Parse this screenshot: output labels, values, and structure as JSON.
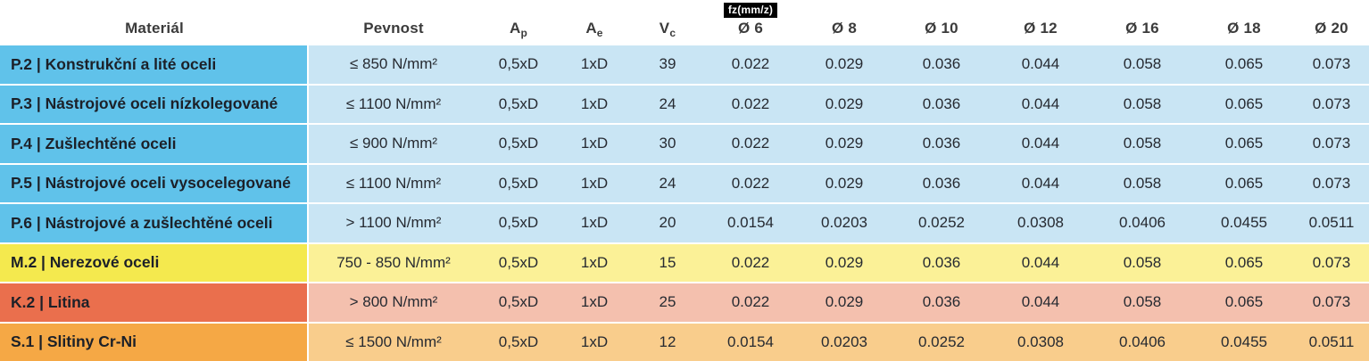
{
  "table": {
    "header": {
      "material": "Materiál",
      "pevnost": "Pevnost",
      "ap": {
        "base": "A",
        "sub": "p"
      },
      "ae": {
        "base": "A",
        "sub": "e"
      },
      "vc": {
        "base": "V",
        "sub": "c"
      },
      "fz_unit": "fz(mm/z)",
      "diameters": [
        "Ø 6",
        "Ø 8",
        "Ø 10",
        "Ø 12",
        "Ø 16",
        "Ø 18",
        "Ø 20"
      ]
    },
    "rows": [
      {
        "theme": "blue",
        "material": "P.2 | Konstrukční a lité oceli",
        "pevnost": "≤ 850 N/mm²",
        "ap": "0,5xD",
        "ae": "1xD",
        "vc": "39",
        "fz": [
          "0.022",
          "0.029",
          "0.036",
          "0.044",
          "0.058",
          "0.065",
          "0.073"
        ]
      },
      {
        "theme": "blue",
        "material": "P.3 | Nástrojové oceli nízkolegované",
        "pevnost": "≤ 1100 N/mm²",
        "ap": "0,5xD",
        "ae": "1xD",
        "vc": "24",
        "fz": [
          "0.022",
          "0.029",
          "0.036",
          "0.044",
          "0.058",
          "0.065",
          "0.073"
        ]
      },
      {
        "theme": "blue",
        "material": "P.4 | Zušlechtěné oceli",
        "pevnost": "≤ 900 N/mm²",
        "ap": "0,5xD",
        "ae": "1xD",
        "vc": "30",
        "fz": [
          "0.022",
          "0.029",
          "0.036",
          "0.044",
          "0.058",
          "0.065",
          "0.073"
        ]
      },
      {
        "theme": "blue",
        "material": "P.5 | Nástrojové oceli vysocelegované",
        "pevnost": "≤ 1100 N/mm²",
        "ap": "0,5xD",
        "ae": "1xD",
        "vc": "24",
        "fz": [
          "0.022",
          "0.029",
          "0.036",
          "0.044",
          "0.058",
          "0.065",
          "0.073"
        ]
      },
      {
        "theme": "blue",
        "material": "P.6 | Nástrojové a zušlechtěné oceli",
        "pevnost": "> 1100 N/mm²",
        "ap": "0,5xD",
        "ae": "1xD",
        "vc": "20",
        "fz": [
          "0.0154",
          "0.0203",
          "0.0252",
          "0.0308",
          "0.0406",
          "0.0455",
          "0.0511"
        ]
      },
      {
        "theme": "yellow",
        "material": "M.2 | Nerezové oceli",
        "pevnost": "750 - 850 N/mm²",
        "ap": "0,5xD",
        "ae": "1xD",
        "vc": "15",
        "fz": [
          "0.022",
          "0.029",
          "0.036",
          "0.044",
          "0.058",
          "0.065",
          "0.073"
        ]
      },
      {
        "theme": "salmon",
        "material": "K.2 | Litina",
        "pevnost": "> 800 N/mm²",
        "ap": "0,5xD",
        "ae": "1xD",
        "vc": "25",
        "fz": [
          "0.022",
          "0.029",
          "0.036",
          "0.044",
          "0.058",
          "0.065",
          "0.073"
        ]
      },
      {
        "theme": "orange",
        "material": "S.1 | Slitiny Cr-Ni",
        "pevnost": "≤ 1500 N/mm²",
        "ap": "0,5xD",
        "ae": "1xD",
        "vc": "12",
        "fz": [
          "0.0154",
          "0.0203",
          "0.0252",
          "0.0308",
          "0.0406",
          "0.0455",
          "0.0511"
        ]
      }
    ],
    "colors": {
      "blue": {
        "dark": "#60c2ea",
        "light": "#c9e5f4"
      },
      "yellow": {
        "dark": "#f4e94e",
        "light": "#fbf197"
      },
      "salmon": {
        "dark": "#ea6f4d",
        "light": "#f4c0ae"
      },
      "orange": {
        "dark": "#f5a845",
        "light": "#f9cd8c"
      }
    }
  },
  "chart_data": {
    "type": "table",
    "title": "",
    "columns": [
      "Materiál",
      "Pevnost",
      "Ap",
      "Ae",
      "Vc",
      "fz(mm/z) Ø 6",
      "Ø 8",
      "Ø 10",
      "Ø 12",
      "Ø 16",
      "Ø 18",
      "Ø 20"
    ],
    "rows": [
      [
        "P.2 | Konstrukční a lité oceli",
        "≤ 850 N/mm²",
        "0,5xD",
        "1xD",
        39,
        0.022,
        0.029,
        0.036,
        0.044,
        0.058,
        0.065,
        0.073
      ],
      [
        "P.3 | Nástrojové oceli nízkolegované",
        "≤ 1100 N/mm²",
        "0,5xD",
        "1xD",
        24,
        0.022,
        0.029,
        0.036,
        0.044,
        0.058,
        0.065,
        0.073
      ],
      [
        "P.4 | Zušlechtěné oceli",
        "≤ 900 N/mm²",
        "0,5xD",
        "1xD",
        30,
        0.022,
        0.029,
        0.036,
        0.044,
        0.058,
        0.065,
        0.073
      ],
      [
        "P.5 | Nástrojové oceli vysocelegované",
        "≤ 1100 N/mm²",
        "0,5xD",
        "1xD",
        24,
        0.022,
        0.029,
        0.036,
        0.044,
        0.058,
        0.065,
        0.073
      ],
      [
        "P.6 | Nástrojové a zušlechtěné oceli",
        "> 1100 N/mm²",
        "0,5xD",
        "1xD",
        20,
        0.0154,
        0.0203,
        0.0252,
        0.0308,
        0.0406,
        0.0455,
        0.0511
      ],
      [
        "M.2 | Nerezové oceli",
        "750 - 850 N/mm²",
        "0,5xD",
        "1xD",
        15,
        0.022,
        0.029,
        0.036,
        0.044,
        0.058,
        0.065,
        0.073
      ],
      [
        "K.2 | Litina",
        "> 800 N/mm²",
        "0,5xD",
        "1xD",
        25,
        0.022,
        0.029,
        0.036,
        0.044,
        0.058,
        0.065,
        0.073
      ],
      [
        "S.1 | Slitiny Cr-Ni",
        "≤ 1500 N/mm²",
        "0,5xD",
        "1xD",
        12,
        0.0154,
        0.0203,
        0.0252,
        0.0308,
        0.0406,
        0.0455,
        0.0511
      ]
    ]
  }
}
